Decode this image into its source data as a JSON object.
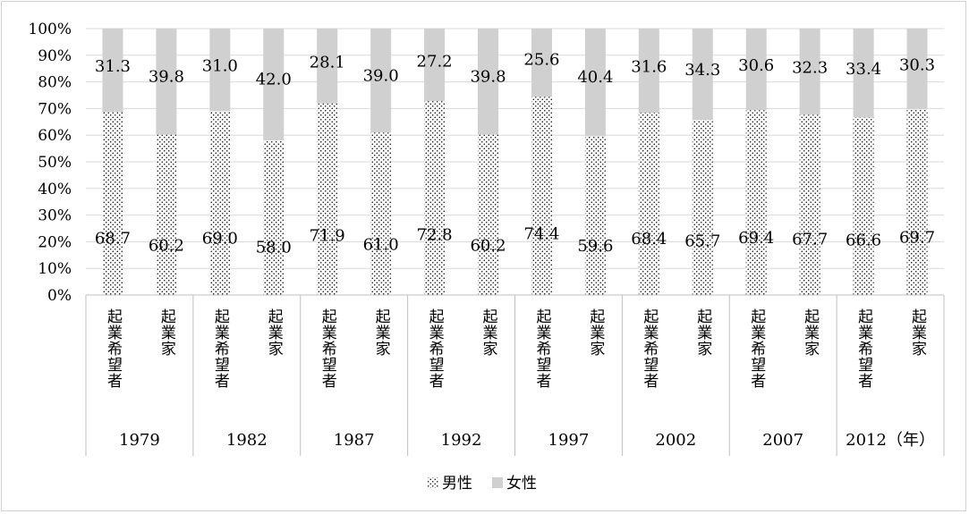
{
  "chart_data": {
    "type": "bar",
    "stacked": true,
    "title": "",
    "xlabel": "",
    "ylabel": "",
    "ylim": [
      0,
      100
    ],
    "y_ticks": [
      "0%",
      "10%",
      "20%",
      "30%",
      "40%",
      "50%",
      "60%",
      "70%",
      "80%",
      "90%",
      "100%"
    ],
    "grid": true,
    "legend_position": "bottom",
    "groups": [
      "1979",
      "1982",
      "1987",
      "1992",
      "1997",
      "2002",
      "2007",
      "2012（年）"
    ],
    "subcategories": [
      "起業希望者",
      "起業家"
    ],
    "series": [
      {
        "name": "男性",
        "pattern": "dotted",
        "values": [
          68.7,
          60.2,
          69.0,
          58.0,
          71.9,
          61.0,
          72.8,
          60.2,
          74.4,
          59.6,
          68.4,
          65.7,
          69.4,
          67.7,
          66.6,
          69.7
        ],
        "labels": [
          "68.7",
          "60.2",
          "69.0",
          "58.0",
          "71.9",
          "61.0",
          "72.8",
          "60.2",
          "74.4",
          "59.6",
          "68.4",
          "65.7",
          "69.4",
          "67.7",
          "66.6",
          "69.7"
        ]
      },
      {
        "name": "女性",
        "color": "#d0d0d0",
        "values": [
          31.3,
          39.8,
          31.0,
          42.0,
          28.1,
          39.0,
          27.2,
          39.8,
          25.6,
          40.4,
          31.6,
          34.3,
          30.6,
          32.3,
          33.4,
          30.3
        ],
        "labels": [
          "31.3",
          "39.8",
          "31.0",
          "42.0",
          "28.1",
          "39.0",
          "27.2",
          "39.8",
          "25.6",
          "40.4",
          "31.6",
          "34.3",
          "30.6",
          "32.3",
          "33.4",
          "30.3"
        ]
      }
    ]
  }
}
